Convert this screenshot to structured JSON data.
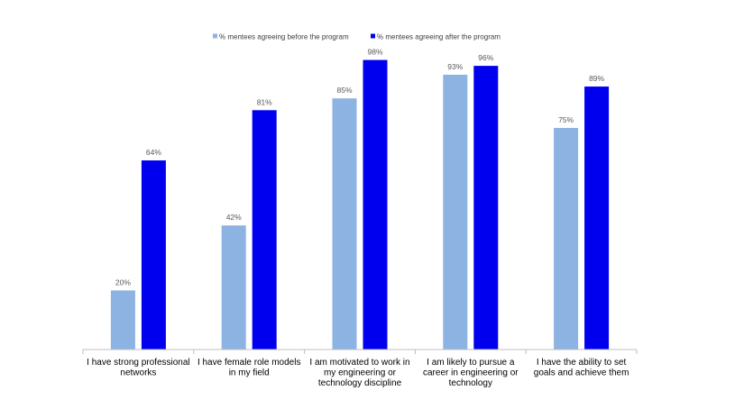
{
  "chart_data": {
    "type": "bar",
    "title": "",
    "xlabel": "",
    "ylabel": "",
    "ylim": [
      0,
      100
    ],
    "grid": false,
    "legend_position": "top",
    "categories": [
      [
        "I have strong professional",
        "networks"
      ],
      [
        "I have female role models",
        "in my field"
      ],
      [
        "I am motivated to work in",
        "my engineering or",
        "technology discipline"
      ],
      [
        "I am likely to pursue a",
        "career in engineering or",
        "technology"
      ],
      [
        "I have the ability to set",
        "goals and achieve them"
      ]
    ],
    "series": [
      {
        "name": "% mentees agreeing before the program",
        "color": "#8db3e2",
        "values": [
          20,
          42,
          85,
          93,
          75
        ],
        "labels": [
          "20%",
          "42%",
          "85%",
          "93%",
          "75%"
        ]
      },
      {
        "name": "% mentees agreeing after the program",
        "color": "#0000ee",
        "values": [
          64,
          81,
          98,
          96,
          89
        ],
        "labels": [
          "64%",
          "81%",
          "98%",
          "96%",
          "89%"
        ]
      }
    ]
  }
}
